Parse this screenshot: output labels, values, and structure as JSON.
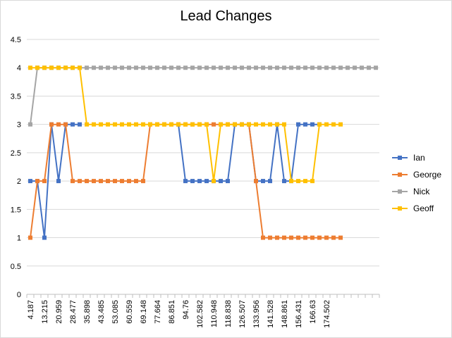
{
  "chart_data": {
    "type": "line",
    "title": "Lead Changes",
    "xlabel": "",
    "ylabel": "",
    "ylim": [
      0,
      4.5
    ],
    "y_ticks": [
      0,
      0.5,
      1,
      1.5,
      2,
      2.5,
      3,
      3.5,
      4,
      4.5
    ],
    "y_tick_labels": [
      "0",
      "0.5",
      "1",
      "1.5",
      "2",
      "2.5",
      "3",
      "3.5",
      "4",
      "4.5"
    ],
    "x_tick_labels": [
      "4.187",
      "13.215",
      "20.959",
      "28.477",
      "35.898",
      "43.485",
      "53.085",
      "60.559",
      "69.148",
      "77.664",
      "86.851",
      "94.76",
      "102.582",
      "110.948",
      "118.838",
      "126.507",
      "133.956",
      "141.528",
      "148.861",
      "156.431",
      "166.63",
      "174.502"
    ],
    "x_label_every": 2,
    "n_categories": 50,
    "grid": true,
    "legend_position": "right",
    "series": [
      {
        "name": "Ian",
        "color": "#4472c4",
        "values": [
          2,
          2,
          1,
          3,
          2,
          3,
          3,
          3,
          null,
          null,
          null,
          null,
          null,
          null,
          null,
          null,
          null,
          null,
          null,
          null,
          null,
          3,
          2,
          2,
          2,
          2,
          2,
          2,
          2,
          3,
          3,
          3,
          2,
          2,
          2,
          3,
          2,
          2,
          3,
          3,
          3,
          3,
          null,
          null,
          null,
          null,
          null,
          null,
          null,
          null
        ]
      },
      {
        "name": "George",
        "color": "#ed7d31",
        "values": [
          1,
          2,
          2,
          3,
          3,
          3,
          2,
          2,
          2,
          2,
          2,
          2,
          2,
          2,
          2,
          2,
          2,
          3,
          3,
          3,
          3,
          3,
          3,
          3,
          3,
          3,
          3,
          3,
          3,
          3,
          3,
          3,
          2,
          1,
          1,
          1,
          1,
          1,
          1,
          1,
          1,
          1,
          1,
          1,
          1,
          null,
          null,
          null,
          null,
          null
        ]
      },
      {
        "name": "Nick",
        "color": "#a5a5a5",
        "values": [
          3,
          4,
          4,
          4,
          4,
          4,
          4,
          4,
          4,
          4,
          4,
          4,
          4,
          4,
          4,
          4,
          4,
          4,
          4,
          4,
          4,
          4,
          4,
          4,
          4,
          4,
          4,
          4,
          4,
          4,
          4,
          4,
          4,
          4,
          4,
          4,
          4,
          4,
          4,
          4,
          4,
          4,
          4,
          4,
          4,
          4,
          4,
          4,
          4,
          4
        ]
      },
      {
        "name": "Geoff",
        "color": "#ffc000",
        "values": [
          4,
          4,
          4,
          4,
          4,
          4,
          4,
          4,
          3,
          3,
          3,
          3,
          3,
          3,
          3,
          3,
          3,
          3,
          3,
          3,
          3,
          3,
          3,
          3,
          3,
          3,
          2,
          3,
          3,
          3,
          3,
          3,
          3,
          3,
          3,
          3,
          3,
          2,
          2,
          2,
          2,
          3,
          3,
          3,
          3,
          null,
          null,
          null,
          null,
          null
        ]
      }
    ]
  }
}
